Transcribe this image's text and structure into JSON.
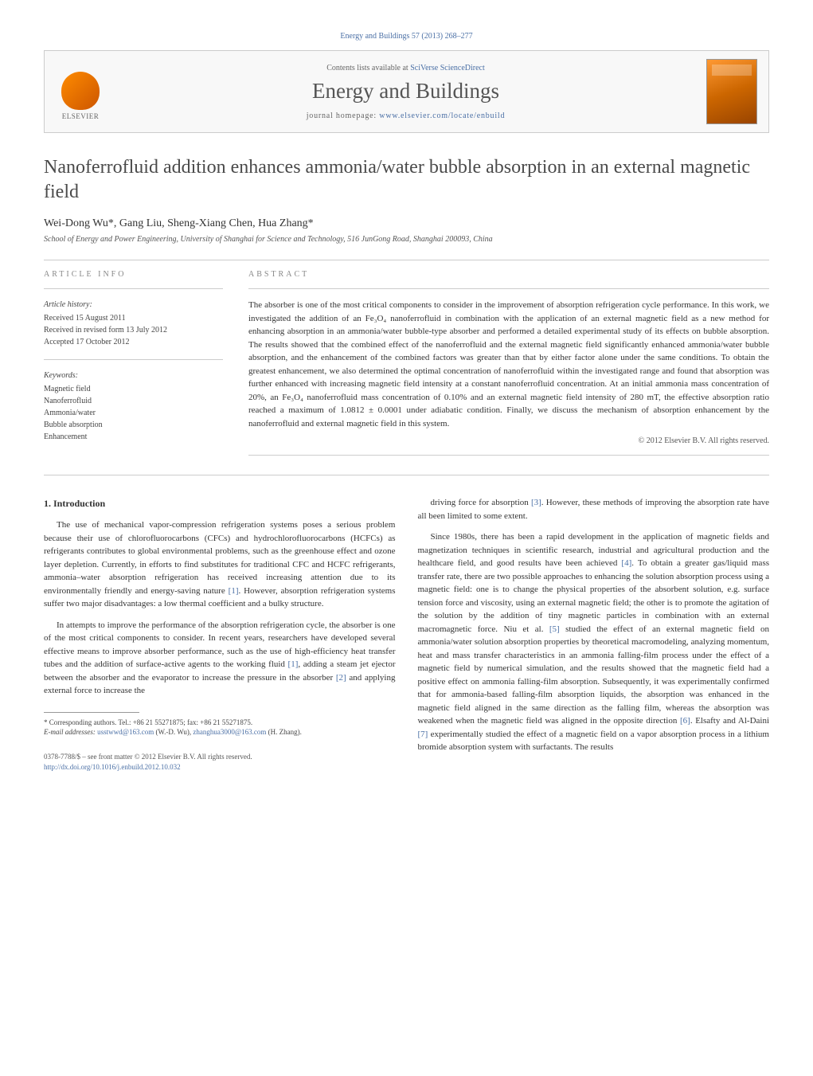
{
  "journal_ref": "Energy and Buildings 57 (2013) 268–277",
  "header": {
    "contents_prefix": "Contents lists available at ",
    "contents_link": "SciVerse ScienceDirect",
    "journal_name": "Energy and Buildings",
    "homepage_prefix": "journal homepage: ",
    "homepage_link": "www.elsevier.com/locate/enbuild",
    "publisher_label": "ELSEVIER"
  },
  "article": {
    "title": "Nanoferrofluid addition enhances ammonia/water bubble absorption in an external magnetic field",
    "authors": "Wei-Dong Wu*, Gang Liu, Sheng-Xiang Chen, Hua Zhang*",
    "affiliation": "School of Energy and Power Engineering, University of Shanghai for Science and Technology, 516 JunGong Road, Shanghai 200093, China"
  },
  "info": {
    "section_label": "ARTICLE INFO",
    "history_heading": "Article history:",
    "history_lines": [
      "Received 15 August 2011",
      "Received in revised form 13 July 2012",
      "Accepted 17 October 2012"
    ],
    "keywords_heading": "Keywords:",
    "keywords": [
      "Magnetic field",
      "Nanoferrofluid",
      "Ammonia/water",
      "Bubble absorption",
      "Enhancement"
    ]
  },
  "abstract": {
    "section_label": "ABSTRACT",
    "text": "The absorber is one of the most critical components to consider in the improvement of absorption refrigeration cycle performance. In this work, we investigated the addition of an Fe₃O₄ nanoferrofluid in combination with the application of an external magnetic field as a new method for enhancing absorption in an ammonia/water bubble-type absorber and performed a detailed experimental study of its effects on bubble absorption. The results showed that the combined effect of the nanoferrofluid and the external magnetic field significantly enhanced ammonia/water bubble absorption, and the enhancement of the combined factors was greater than that by either factor alone under the same conditions. To obtain the greatest enhancement, we also determined the optimal concentration of nanoferrofluid within the investigated range and found that absorption was further enhanced with increasing magnetic field intensity at a constant nanoferrofluid concentration. At an initial ammonia mass concentration of 20%, an Fe₃O₄ nanoferrofluid mass concentration of 0.10% and an external magnetic field intensity of 280 mT, the effective absorption ratio reached a maximum of 1.0812 ± 0.0001 under adiabatic condition. Finally, we discuss the mechanism of absorption enhancement by the nanoferrofluid and external magnetic field in this system.",
    "copyright": "© 2012 Elsevier B.V. All rights reserved."
  },
  "body": {
    "heading": "1. Introduction",
    "left_paras": [
      "The use of mechanical vapor-compression refrigeration systems poses a serious problem because their use of chlorofluorocarbons (CFCs) and hydrochlorofluorocarbons (HCFCs) as refrigerants contributes to global environmental problems, such as the greenhouse effect and ozone layer depletion. Currently, in efforts to find substitutes for traditional CFC and HCFC refrigerants, ammonia–water absorption refrigeration has received increasing attention due to its environmentally friendly and energy-saving nature [1]. However, absorption refrigeration systems suffer two major disadvantages: a low thermal coefficient and a bulky structure.",
      "In attempts to improve the performance of the absorption refrigeration cycle, the absorber is one of the most critical components to consider. In recent years, researchers have developed several effective means to improve absorber performance, such as the use of high-efficiency heat transfer tubes and the addition of surface-active agents to the working fluid [1], adding a steam jet ejector between the absorber and the evaporator to increase the pressure in the absorber [2] and applying external force to increase the"
    ],
    "right_paras": [
      "driving force for absorption [3]. However, these methods of improving the absorption rate have all been limited to some extent.",
      "Since 1980s, there has been a rapid development in the application of magnetic fields and magnetization techniques in scientific research, industrial and agricultural production and the healthcare field, and good results have been achieved [4]. To obtain a greater gas/liquid mass transfer rate, there are two possible approaches to enhancing the solution absorption process using a magnetic field: one is to change the physical properties of the absorbent solution, e.g. surface tension force and viscosity, using an external magnetic field; the other is to promote the agitation of the solution by the addition of tiny magnetic particles in combination with an external macromagnetic force. Niu et al. [5] studied the effect of an external magnetic field on ammonia/water solution absorption properties by theoretical macromodeling, analyzing momentum, heat and mass transfer characteristics in an ammonia falling-film process under the effect of a magnetic field by numerical simulation, and the results showed that the magnetic field had a positive effect on ammonia falling-film absorption. Subsequently, it was experimentally confirmed that for ammonia-based falling-film absorption liquids, the absorption was enhanced in the magnetic field aligned in the same direction as the falling film, whereas the absorption was weakened when the magnetic field was aligned in the opposite direction [6]. Elsafty and Al-Daini [7] experimentally studied the effect of a magnetic field on a vapor absorption process in a lithium bromide absorption system with surfactants. The results"
    ],
    "ref_links": [
      "[1]",
      "[2]",
      "[3]",
      "[4]",
      "[5]",
      "[6]",
      "[7]"
    ]
  },
  "footnote": {
    "corr_label": "* Corresponding authors. Tel.: +86 21 55271875; fax: +86 21 55271875.",
    "email_label": "E-mail addresses: ",
    "email1": "usstwwd@163.com",
    "email1_who": " (W.-D. Wu), ",
    "email2": "zhanghua3000@163.com",
    "email2_who": "(H. Zhang)."
  },
  "footer": {
    "issn_line": "0378-7788/$ – see front matter © 2012 Elsevier B.V. All rights reserved.",
    "doi_link": "http://dx.doi.org/10.1016/j.enbuild.2012.10.032"
  },
  "colors": {
    "link": "#4a6fa5",
    "text": "#333333",
    "muted": "#666666"
  }
}
